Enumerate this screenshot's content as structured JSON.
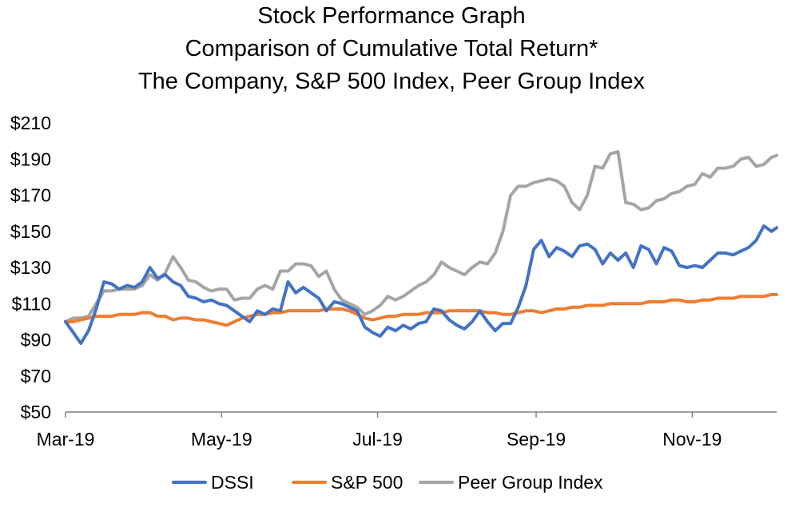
{
  "chart_data": {
    "type": "line",
    "title": [
      "Stock Performance Graph",
      "Comparison of Cumulative Total Return*",
      "The Company, S&P 500 Index, Peer Group Index"
    ],
    "xlabel": "",
    "ylabel": "",
    "x_tick_labels": [
      "Mar-19",
      "May-19",
      "Jul-19",
      "Sep-19",
      "Nov-19"
    ],
    "x_tick_positions": [
      0,
      61,
      122,
      184,
      245
    ],
    "xlim": [
      0,
      278
    ],
    "y_tick_labels": [
      "$50",
      "$70",
      "$90",
      "$110",
      "$130",
      "$150",
      "$170",
      "$190",
      "$210"
    ],
    "y_ticks": [
      50,
      70,
      90,
      110,
      130,
      150,
      170,
      190,
      210
    ],
    "ylim": [
      50,
      210
    ],
    "grid": false,
    "legend_position": "bottom",
    "series": [
      {
        "name": "DSSI",
        "color": "#4472C4",
        "x": [
          0,
          3,
          6,
          9,
          12,
          15,
          18,
          21,
          24,
          27,
          30,
          33,
          36,
          39,
          42,
          45,
          48,
          51,
          54,
          57,
          60,
          63,
          66,
          69,
          72,
          75,
          78,
          81,
          84,
          87,
          90,
          93,
          96,
          99,
          102,
          105,
          108,
          111,
          114,
          117,
          120,
          123,
          126,
          129,
          132,
          135,
          138,
          141,
          144,
          147,
          150,
          153,
          156,
          159,
          162,
          165,
          168,
          171,
          174,
          177,
          180,
          183,
          186,
          189,
          192,
          195,
          198,
          201,
          204,
          207,
          210,
          213,
          216,
          219,
          222,
          225,
          228,
          231,
          234,
          237,
          240,
          243,
          246,
          249,
          252,
          255,
          258,
          261,
          264,
          267,
          270,
          273,
          276,
          278
        ],
        "values": [
          100,
          94,
          88,
          95,
          107,
          122,
          121,
          118,
          120,
          119,
          122,
          130,
          124,
          126,
          122,
          120,
          114,
          113,
          111,
          112,
          110,
          109,
          106,
          103,
          100,
          106,
          104,
          107,
          106,
          122,
          116,
          119,
          116,
          113,
          106,
          111,
          110,
          108,
          106,
          97,
          94,
          92,
          97,
          95,
          98,
          96,
          99,
          100,
          107,
          106,
          101,
          98,
          96,
          100,
          106,
          100,
          95,
          99,
          99,
          108,
          120,
          140,
          145,
          136,
          141,
          139,
          136,
          142,
          143,
          140,
          132,
          138,
          134,
          138,
          130,
          142,
          140,
          132,
          141,
          139,
          131,
          130,
          131,
          130,
          134,
          138,
          138,
          137,
          139,
          141,
          145,
          153,
          150,
          152
        ]
      },
      {
        "name": "S&P 500",
        "color": "#ED7D31",
        "x": [
          0,
          3,
          6,
          9,
          12,
          15,
          18,
          21,
          24,
          27,
          30,
          33,
          36,
          39,
          42,
          45,
          48,
          51,
          54,
          57,
          60,
          63,
          66,
          69,
          72,
          75,
          78,
          81,
          84,
          87,
          90,
          93,
          96,
          99,
          102,
          105,
          108,
          111,
          114,
          117,
          120,
          123,
          126,
          129,
          132,
          135,
          138,
          141,
          144,
          147,
          150,
          153,
          156,
          159,
          162,
          165,
          168,
          171,
          174,
          177,
          180,
          183,
          186,
          189,
          192,
          195,
          198,
          201,
          204,
          207,
          210,
          213,
          216,
          219,
          222,
          225,
          228,
          231,
          234,
          237,
          240,
          243,
          246,
          249,
          252,
          255,
          258,
          261,
          264,
          267,
          270,
          273,
          276,
          278
        ],
        "values": [
          100,
          100,
          101,
          102,
          103,
          103,
          103,
          104,
          104,
          104,
          105,
          105,
          103,
          103,
          101,
          102,
          102,
          101,
          101,
          100,
          99,
          98,
          100,
          102,
          103,
          104,
          104,
          105,
          105,
          106,
          106,
          106,
          106,
          106,
          107,
          107,
          107,
          106,
          104,
          102,
          101,
          102,
          103,
          103,
          104,
          104,
          104,
          105,
          105,
          105,
          106,
          106,
          106,
          106,
          106,
          105,
          105,
          104,
          104,
          105,
          106,
          106,
          105,
          106,
          107,
          107,
          108,
          108,
          109,
          109,
          109,
          110,
          110,
          110,
          110,
          110,
          111,
          111,
          111,
          112,
          112,
          111,
          111,
          112,
          112,
          113,
          113,
          113,
          114,
          114,
          114,
          114,
          115,
          115
        ]
      },
      {
        "name": "Peer Group Index",
        "color": "#A5A5A5",
        "x": [
          0,
          3,
          6,
          9,
          12,
          15,
          18,
          21,
          24,
          27,
          30,
          33,
          36,
          39,
          42,
          45,
          48,
          51,
          54,
          57,
          60,
          63,
          66,
          69,
          72,
          75,
          78,
          81,
          84,
          87,
          90,
          93,
          96,
          99,
          102,
          105,
          108,
          111,
          114,
          117,
          120,
          123,
          126,
          129,
          132,
          135,
          138,
          141,
          144,
          147,
          150,
          153,
          156,
          159,
          162,
          165,
          168,
          171,
          174,
          177,
          180,
          183,
          186,
          189,
          192,
          195,
          198,
          201,
          204,
          207,
          210,
          213,
          216,
          219,
          222,
          225,
          228,
          231,
          234,
          237,
          240,
          243,
          246,
          249,
          252,
          255,
          258,
          261,
          264,
          267,
          270,
          273,
          276,
          278
        ],
        "values": [
          100,
          102,
          102,
          103,
          110,
          117,
          117,
          118,
          118,
          118,
          120,
          126,
          123,
          127,
          136,
          130,
          123,
          122,
          119,
          117,
          118,
          118,
          112,
          113,
          113,
          118,
          120,
          118,
          128,
          128,
          132,
          132,
          131,
          125,
          128,
          118,
          112,
          110,
          108,
          104,
          106,
          109,
          114,
          112,
          114,
          117,
          120,
          122,
          126,
          133,
          130,
          128,
          126,
          130,
          133,
          132,
          138,
          150,
          170,
          175,
          175,
          177,
          178,
          179,
          178,
          175,
          166,
          162,
          170,
          186,
          185,
          193,
          194,
          166,
          165,
          162,
          163,
          167,
          168,
          171,
          172,
          175,
          176,
          182,
          180,
          185,
          185,
          186,
          190,
          191,
          186,
          187,
          191,
          192
        ]
      }
    ]
  }
}
